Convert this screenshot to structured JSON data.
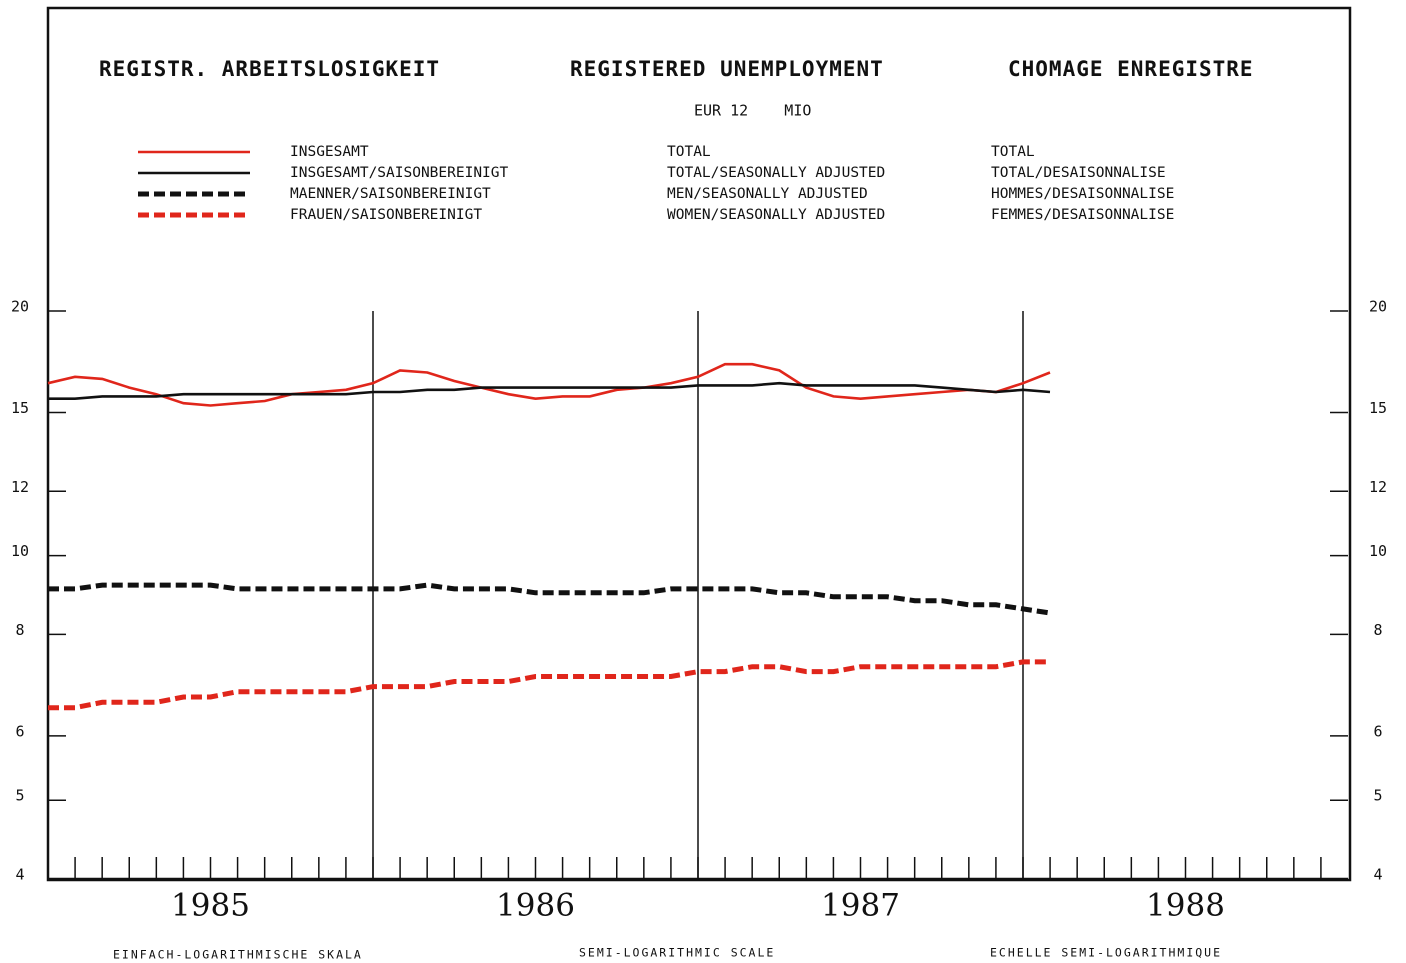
{
  "chart_data": {
    "type": "line",
    "titles": [
      "REGISTR. ARBEITSLOSIGKEIT",
      "REGISTERED UNEMPLOYMENT",
      "CHOMAGE ENREGISTRE"
    ],
    "subtitle": "EUR 12    MIO",
    "footnotes": [
      "EINFACH-LOGARITHMISCHE SKALA",
      "SEMI-LOGARITHMIC SCALE",
      "ECHELLE SEMI-LOGARITHMIQUE"
    ],
    "log_scale": true,
    "xlim": [
      1985,
      1989
    ],
    "xticks": [
      {
        "value": 1985.5,
        "label": "1985"
      },
      {
        "value": 1986.5,
        "label": "1986"
      },
      {
        "value": 1987.5,
        "label": "1987"
      },
      {
        "value": 1988.5,
        "label": "1988"
      }
    ],
    "year_dividers": [
      1986,
      1987,
      1988
    ],
    "ylim": [
      4,
      20
    ],
    "yticks": [
      4,
      5,
      6,
      8,
      10,
      12,
      15,
      20
    ],
    "x": [
      1985,
      1985.083,
      1985.167,
      1985.25,
      1985.333,
      1985.417,
      1985.5,
      1985.583,
      1985.667,
      1985.75,
      1985.833,
      1985.917,
      1986,
      1986.083,
      1986.167,
      1986.25,
      1986.333,
      1986.417,
      1986.5,
      1986.583,
      1986.667,
      1986.75,
      1986.833,
      1986.917,
      1987,
      1987.083,
      1987.167,
      1987.25,
      1987.333,
      1987.417,
      1987.5,
      1987.583,
      1987.667,
      1987.75,
      1987.833,
      1987.917,
      1988,
      1988.083
    ],
    "series": [
      {
        "name": "INSGESAMT",
        "name_en": "TOTAL",
        "name_fr": "TOTAL",
        "color": "#e0261b",
        "dash": false,
        "values": [
          16.3,
          16.6,
          16.5,
          16.1,
          15.8,
          15.4,
          15.3,
          15.4,
          15.5,
          15.8,
          15.9,
          16.0,
          16.3,
          16.9,
          16.8,
          16.4,
          16.1,
          15.8,
          15.6,
          15.7,
          15.7,
          16.0,
          16.1,
          16.3,
          16.6,
          17.2,
          17.2,
          16.9,
          16.1,
          15.7,
          15.6,
          15.7,
          15.8,
          15.9,
          16.0,
          15.9,
          16.3,
          16.8
        ]
      },
      {
        "name": "INSGESAMT/SAISONBEREINIGT",
        "name_en": "TOTAL/SEASONALLY ADJUSTED",
        "name_fr": "TOTAL/DESAISONNALISE",
        "color": "#111111",
        "dash": false,
        "values": [
          15.6,
          15.6,
          15.7,
          15.7,
          15.7,
          15.8,
          15.8,
          15.8,
          15.8,
          15.8,
          15.8,
          15.8,
          15.9,
          15.9,
          16.0,
          16.0,
          16.1,
          16.1,
          16.1,
          16.1,
          16.1,
          16.1,
          16.1,
          16.1,
          16.2,
          16.2,
          16.2,
          16.3,
          16.2,
          16.2,
          16.2,
          16.2,
          16.2,
          16.1,
          16.0,
          15.9,
          16.0,
          15.9
        ]
      },
      {
        "name": "MAENNER/SAISONBEREINIGT",
        "name_en": "MEN/SEASONALLY ADJUSTED",
        "name_fr": "HOMMES/DESAISONNALISE",
        "color": "#111111",
        "dash": true,
        "values": [
          9.1,
          9.1,
          9.2,
          9.2,
          9.2,
          9.2,
          9.2,
          9.1,
          9.1,
          9.1,
          9.1,
          9.1,
          9.1,
          9.1,
          9.2,
          9.1,
          9.1,
          9.1,
          9.0,
          9.0,
          9.0,
          9.0,
          9.0,
          9.1,
          9.1,
          9.1,
          9.1,
          9.0,
          9.0,
          8.9,
          8.9,
          8.9,
          8.8,
          8.8,
          8.7,
          8.7,
          8.6,
          8.5
        ]
      },
      {
        "name": "FRAUEN/SAISONBEREINIGT",
        "name_en": "WOMEN/SEASONALLY ADJUSTED",
        "name_fr": "FEMMES/DESAISONNALISE",
        "color": "#e0261b",
        "dash": true,
        "values": [
          6.5,
          6.5,
          6.6,
          6.6,
          6.6,
          6.7,
          6.7,
          6.8,
          6.8,
          6.8,
          6.8,
          6.8,
          6.9,
          6.9,
          6.9,
          7.0,
          7.0,
          7.0,
          7.1,
          7.1,
          7.1,
          7.1,
          7.1,
          7.1,
          7.2,
          7.2,
          7.3,
          7.3,
          7.2,
          7.2,
          7.3,
          7.3,
          7.3,
          7.3,
          7.3,
          7.3,
          7.4,
          7.4
        ]
      }
    ]
  }
}
